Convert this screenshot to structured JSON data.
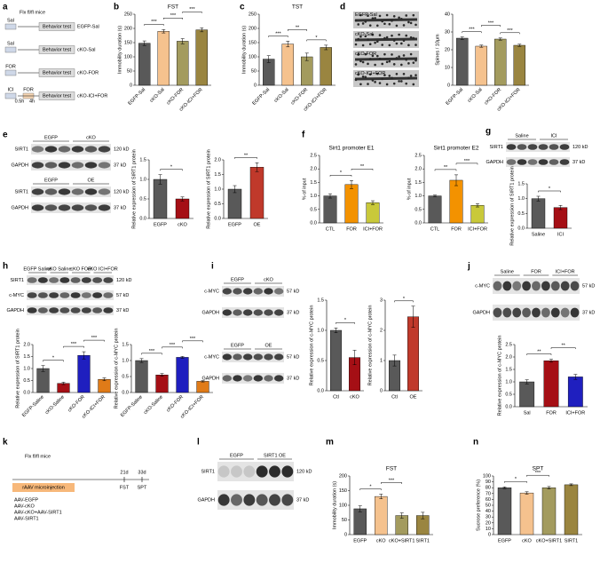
{
  "panel_labels": [
    "a",
    "b",
    "c",
    "d",
    "e",
    "f",
    "g",
    "h",
    "i",
    "j",
    "k",
    "l",
    "m",
    "n"
  ],
  "schematic_a": {
    "title": "Flx fl/fl mice",
    "times": [
      "0.5h",
      "4h"
    ],
    "rows": [
      {
        "treatments": [
          "Sal"
        ],
        "test": "Behavior test",
        "group": "EGFP-Sal"
      },
      {
        "treatments": [
          "Sal"
        ],
        "test": "Behavior test",
        "group": "cKO-Sal"
      },
      {
        "treatments": [
          "FOR"
        ],
        "test": "Behavior test",
        "group": "cKO-FOR"
      },
      {
        "treatments": [
          "ICI",
          "FOR"
        ],
        "test": "Behavior test",
        "group": "cKO-ICI+FOR"
      }
    ]
  },
  "spine_images": [
    "EGFP-Sal",
    "cKO-Sal",
    "cKO-FOR",
    "cKO-ICI+FOR"
  ],
  "schematic_k": {
    "title": "Flx fl/fl mice",
    "box": "rAAV microinjection",
    "days": [
      "21d",
      "33d"
    ],
    "tests": [
      "FST",
      "SPT"
    ],
    "groups": [
      "AAV-EGFP",
      "AAV-cKO",
      "AAV-cKO+AAV-SIRT1",
      "AAV-SIRT1"
    ]
  },
  "blots": [
    {
      "groups": [
        "EGFP",
        "cKO"
      ],
      "rows": [
        {
          "name": "SIRT1",
          "size": "120 kD"
        },
        {
          "name": "GAPDH",
          "size": "37 kD"
        }
      ]
    },
    {
      "groups": [
        "EGFP",
        "OE"
      ],
      "rows": [
        {
          "name": "SIRT1",
          "size": "120 kD"
        },
        {
          "name": "GAPDH",
          "size": "37 kD"
        }
      ]
    },
    {
      "groups": [
        "Saline",
        "ICI"
      ],
      "rows": [
        {
          "name": "SIRT1",
          "size": "120 kD"
        },
        {
          "name": "GAPDH",
          "size": "37 kD"
        }
      ]
    },
    {
      "groups": [
        "EGFP Saline",
        "cKO Saline",
        "cKO FOR",
        "cKO ICI+FOR"
      ],
      "rows": [
        {
          "name": "SIRT1",
          "size": "120 kD"
        },
        {
          "name": "c-MYC",
          "size": "57 kD"
        },
        {
          "name": "GAPDH",
          "size": "37 kD"
        }
      ]
    },
    {
      "groups": [
        "EGFP",
        "cKO"
      ],
      "rows": [
        {
          "name": "c-MYC",
          "size": "57 kD"
        },
        {
          "name": "GAPDH",
          "size": "37 kD"
        }
      ]
    },
    {
      "groups": [
        "EGFP",
        "OE"
      ],
      "rows": [
        {
          "name": "c-MYC",
          "size": "57 kD"
        },
        {
          "name": "GAPDH",
          "size": "37 kD"
        }
      ]
    },
    {
      "groups": [
        "Saline",
        "FOR",
        "ICI+FOR"
      ],
      "rows": [
        {
          "name": "c-MYC",
          "size": "57 kD"
        },
        {
          "name": "GAPDH",
          "size": "37 kD"
        }
      ]
    },
    {
      "groups": [
        "EGFP",
        "SIRT1 OE"
      ],
      "rows": [
        {
          "name": "SIRT1",
          "size": "120 kD"
        },
        {
          "name": "GAPDH",
          "size": "37 kD"
        }
      ]
    }
  ],
  "chart_data": [
    {
      "type": "bar",
      "title": "FST",
      "y_label": "Immobility duration (s)",
      "categories": [
        "EGFP-Sal",
        "cKO-Sal",
        "cKO-FOR",
        "cKO-ICI+FOR"
      ],
      "values": [
        148,
        190,
        155,
        195
      ],
      "errors": [
        8,
        6,
        9,
        7
      ],
      "colors": [
        "#595959",
        "#f5c28e",
        "#a39b5e",
        "#9a8540"
      ],
      "ylim": [
        0,
        250
      ],
      "yticks": [
        0,
        50,
        100,
        150,
        200,
        250
      ],
      "significance": [
        {
          "text": "***",
          "pair": [
            0,
            1
          ]
        },
        {
          "text": "***",
          "pair": [
            1,
            2
          ]
        },
        {
          "text": "***",
          "pair": [
            2,
            3
          ]
        }
      ]
    },
    {
      "type": "bar",
      "title": "TST",
      "y_label": "Immobility duration (s)",
      "categories": [
        "EGFP-Sal",
        "cKO-Sal",
        "cKO-FOR",
        "cKO-ICI+FOR"
      ],
      "values": [
        92,
        145,
        100,
        133
      ],
      "errors": [
        12,
        10,
        13,
        8
      ],
      "colors": [
        "#595959",
        "#f5c28e",
        "#a39b5e",
        "#9a8540"
      ],
      "ylim": [
        0,
        250
      ],
      "yticks": [
        0,
        50,
        100,
        150,
        200,
        250
      ],
      "significance": [
        {
          "text": "***",
          "pair": [
            0,
            1
          ]
        },
        {
          "text": "**",
          "pair": [
            1,
            2
          ]
        },
        {
          "text": "*",
          "pair": [
            2,
            3
          ]
        }
      ]
    },
    {
      "type": "bar",
      "y_label": "Spines / 10μm",
      "categories": [
        "EGFP-Sal",
        "cKO-Sal",
        "cKO-FOR",
        "cKO-ICI+FOR"
      ],
      "values": [
        26.5,
        22,
        26,
        22.5
      ],
      "errors": [
        0.7,
        0.6,
        0.6,
        0.6
      ],
      "colors": [
        "#595959",
        "#f5c28e",
        "#a39b5e",
        "#9a8540"
      ],
      "ylim": [
        0,
        40
      ],
      "yticks": [
        0,
        10,
        20,
        30,
        40
      ],
      "significance": [
        {
          "text": "***",
          "pair": [
            0,
            1
          ]
        },
        {
          "text": "***",
          "pair": [
            1,
            2
          ]
        },
        {
          "text": "***",
          "pair": [
            2,
            3
          ]
        }
      ]
    },
    {
      "type": "bar",
      "y_label": "Relative expression of SIRT1 protein",
      "categories": [
        "EGFP",
        "cKO"
      ],
      "values": [
        1.0,
        0.5
      ],
      "errors": [
        0.12,
        0.05
      ],
      "colors": [
        "#595959",
        "#a50f15"
      ],
      "ylim": [
        0,
        1.5
      ],
      "yticks": [
        {
          "value": 0,
          "label": "0.0"
        },
        0.5,
        {
          "value": 1,
          "label": "1.0"
        },
        1.5
      ],
      "significance": [
        {
          "text": "*",
          "pair": [
            0,
            1
          ]
        }
      ]
    },
    {
      "type": "bar",
      "y_label": "Relative expression of SIRT1 protein",
      "categories": [
        "EGFP",
        "OE"
      ],
      "values": [
        1.0,
        1.75
      ],
      "errors": [
        0.12,
        0.15
      ],
      "colors": [
        "#595959",
        "#c0392b"
      ],
      "ylim": [
        0,
        2
      ],
      "yticks": [
        {
          "value": 0,
          "label": "0.0"
        },
        0.5,
        {
          "value": 1,
          "label": "1.0"
        },
        1.5,
        {
          "value": 2,
          "label": "2.0"
        }
      ],
      "significance": [
        {
          "text": "**",
          "pair": [
            0,
            1
          ]
        }
      ]
    },
    {
      "type": "bar",
      "title": "Sirt1 promoter E1",
      "y_label": "% of input",
      "categories": [
        "CTL",
        "FOR",
        "ICI+FOR"
      ],
      "values": [
        1.0,
        1.42,
        0.75
      ],
      "errors": [
        0.08,
        0.15,
        0.07
      ],
      "colors": [
        "#595959",
        "#f39200",
        "#c9c93a"
      ],
      "ylim": [
        0,
        2.5
      ],
      "yticks": [
        {
          "value": 0,
          "label": "0.0"
        },
        0.5,
        {
          "value": 1,
          "label": "1.0"
        },
        1.5,
        {
          "value": 2,
          "label": "2.0"
        },
        2.5
      ],
      "significance": [
        {
          "text": "*",
          "pair": [
            0,
            1
          ]
        },
        {
          "text": "**",
          "pair": [
            1,
            2
          ]
        }
      ]
    },
    {
      "type": "bar",
      "title": "Sirt1 promoter E2",
      "y_label": "% of input",
      "categories": [
        "CTL",
        "FOR",
        "ICI+FOR"
      ],
      "values": [
        1.0,
        1.58,
        0.65
      ],
      "errors": [
        0.03,
        0.2,
        0.06
      ],
      "colors": [
        "#595959",
        "#f39200",
        "#c9c93a"
      ],
      "ylim": [
        0,
        2.5
      ],
      "yticks": [
        {
          "value": 0,
          "label": "0.0"
        },
        0.5,
        {
          "value": 1,
          "label": "1.0"
        },
        1.5,
        {
          "value": 2,
          "label": "2.0"
        },
        2.5
      ],
      "significance": [
        {
          "text": "**",
          "pair": [
            0,
            1
          ]
        },
        {
          "text": "***",
          "pair": [
            1,
            2
          ]
        }
      ]
    },
    {
      "type": "bar",
      "y_label": "Relative expression of SIRT1 protein",
      "categories": [
        "Saline",
        "ICI"
      ],
      "values": [
        1.0,
        0.7
      ],
      "errors": [
        0.08,
        0.07
      ],
      "colors": [
        "#595959",
        "#a50f15"
      ],
      "ylim": [
        0,
        1.5
      ],
      "yticks": [
        {
          "value": 0,
          "label": "0.0"
        },
        0.5,
        {
          "value": 1,
          "label": "1.0"
        },
        1.5
      ],
      "significance": [
        {
          "text": "*",
          "pair": [
            0,
            1
          ]
        }
      ]
    },
    {
      "type": "bar",
      "y_label": "Relative expression of SIRT1 protein",
      "categories": [
        "EGFP-Saline",
        "cKO-Saline",
        "cKO-FOR",
        "cKO-ICI+FOR"
      ],
      "values": [
        1.0,
        0.38,
        1.55,
        0.55
      ],
      "errors": [
        0.12,
        0.05,
        0.15,
        0.06
      ],
      "colors": [
        "#595959",
        "#a50f15",
        "#1f1fbf",
        "#e07b18"
      ],
      "ylim": [
        0,
        2
      ],
      "yticks": [
        {
          "value": 0,
          "label": "0.0"
        },
        0.5,
        {
          "value": 1,
          "label": "1.0"
        },
        1.5,
        {
          "value": 2,
          "label": "2.0"
        }
      ],
      "significance": [
        {
          "text": "*",
          "pair": [
            0,
            1
          ]
        },
        {
          "text": "***",
          "pair": [
            1,
            2
          ]
        },
        {
          "text": "***",
          "pair": [
            2,
            3
          ]
        }
      ]
    },
    {
      "type": "bar",
      "y_label": "Relative expression of c-MYC protein",
      "categories": [
        "EGFP-Saline",
        "cKO-Saline",
        "cKO-FOR",
        "cKO-ICI+FOR"
      ],
      "values": [
        1.0,
        0.55,
        1.1,
        0.35
      ],
      "errors": [
        0.06,
        0.04,
        0.03,
        0.02
      ],
      "colors": [
        "#595959",
        "#a50f15",
        "#1f1fbf",
        "#e07b18"
      ],
      "ylim": [
        0,
        1.5
      ],
      "yticks": [
        {
          "value": 0,
          "label": "0.0"
        },
        0.5,
        {
          "value": 1,
          "label": "1.0"
        },
        1.5
      ],
      "significance": [
        {
          "text": "***",
          "pair": [
            0,
            1
          ]
        },
        {
          "text": "***",
          "pair": [
            1,
            2
          ]
        },
        {
          "text": "***",
          "pair": [
            2,
            3
          ]
        }
      ]
    },
    {
      "type": "bar",
      "y_label": "Relative expression of c-MYC protein",
      "categories": [
        "Ctl",
        "cKO"
      ],
      "values": [
        1.0,
        0.55
      ],
      "errors": [
        0.04,
        0.12
      ],
      "colors": [
        "#595959",
        "#a50f15"
      ],
      "ylim": [
        0,
        1.5
      ],
      "yticks": [
        {
          "value": 0,
          "label": "0.0"
        },
        0.5,
        {
          "value": 1,
          "label": "1.0"
        },
        1.5
      ],
      "significance": [
        {
          "text": "*",
          "pair": [
            0,
            1
          ]
        }
      ]
    },
    {
      "type": "bar",
      "y_label": "Relative expression of c-MYC protein",
      "categories": [
        "Ctl",
        "OE"
      ],
      "values": [
        1.0,
        2.45
      ],
      "errors": [
        0.18,
        0.35
      ],
      "colors": [
        "#595959",
        "#c0392b"
      ],
      "ylim": [
        0,
        3
      ],
      "yticks": [
        0,
        1,
        2,
        3
      ],
      "significance": [
        {
          "text": "*",
          "pair": [
            0,
            1
          ]
        }
      ]
    },
    {
      "type": "bar",
      "y_label": "Relative expression of c-MYC protein",
      "categories": [
        "Sal",
        "FOR",
        "ICI+FOR"
      ],
      "values": [
        1.0,
        1.85,
        1.2
      ],
      "errors": [
        0.08,
        0.06,
        0.1
      ],
      "colors": [
        "#595959",
        "#a50f15",
        "#1f1fbf"
      ],
      "ylim": [
        0,
        2.5
      ],
      "yticks": [
        {
          "value": 0,
          "label": "0.0"
        },
        0.5,
        {
          "value": 1,
          "label": "1.0"
        },
        1.5,
        {
          "value": 2,
          "label": "2.0"
        },
        2.5
      ],
      "significance": [
        {
          "text": "**",
          "pair": [
            0,
            1
          ]
        },
        {
          "text": "**",
          "pair": [
            1,
            2
          ]
        }
      ]
    },
    {
      "type": "bar",
      "title": "FST",
      "y_label": "Immobility duration (s)",
      "categories": [
        "EGFP",
        "cKO",
        "cKO+SIRT1",
        "SIRT1"
      ],
      "values": [
        88,
        130,
        65,
        65
      ],
      "errors": [
        10,
        8,
        9,
        11
      ],
      "colors": [
        "#595959",
        "#f5c28e",
        "#a39b5e",
        "#9a8540"
      ],
      "ylim": [
        0,
        200
      ],
      "yticks": [
        0,
        50,
        100,
        150,
        200
      ],
      "significance": [
        {
          "text": "*",
          "pair": [
            0,
            1
          ]
        },
        {
          "text": "***",
          "pair": [
            1,
            2
          ]
        }
      ]
    },
    {
      "type": "bar",
      "title": "SPT",
      "y_label": "Sucrose preference (%)",
      "categories": [
        "EGFP",
        "cKO",
        "cKO+SIRT1",
        "SIRT1"
      ],
      "values": [
        80,
        71,
        80,
        85
      ],
      "errors": [
        1.5,
        2,
        2,
        1.5
      ],
      "colors": [
        "#595959",
        "#f5c28e",
        "#a39b5e",
        "#9a8540"
      ],
      "ylim": [
        0,
        100
      ],
      "yticks": [
        0,
        10,
        20,
        30,
        40,
        50,
        60,
        70,
        80,
        90,
        100
      ],
      "significance": [
        {
          "text": "*",
          "pair": [
            0,
            1
          ]
        },
        {
          "text": "***",
          "pair": [
            1,
            2
          ]
        }
      ]
    }
  ]
}
